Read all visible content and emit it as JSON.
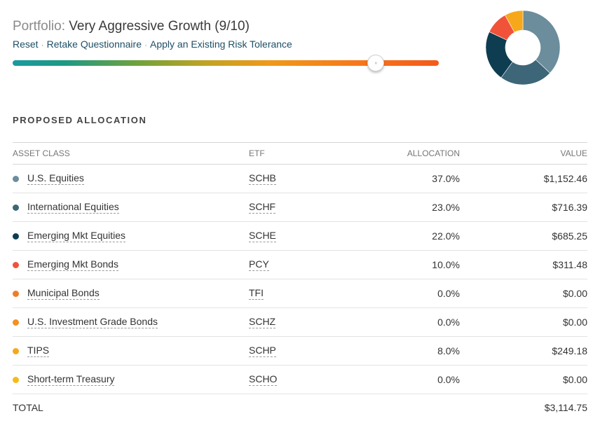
{
  "header": {
    "title_prefix": "Portfolio:",
    "title": "Very Aggressive Growth (9/10)",
    "links": [
      "Reset",
      "Retake Questionnaire",
      "Apply an Existing Risk Tolerance"
    ],
    "separator": "·"
  },
  "risk_slider": {
    "value": 9,
    "max": 10,
    "thumb_icon": "‹›"
  },
  "section_title": "PROPOSED ALLOCATION",
  "table": {
    "headers": [
      "ASSET CLASS",
      "ETF",
      "ALLOCATION",
      "VALUE"
    ],
    "rows": [
      {
        "asset": "U.S. Equities",
        "etf": "SCHB",
        "allocation": "37.0%",
        "value": "$1,152.46",
        "color": "#6b8d9c"
      },
      {
        "asset": "International Equities",
        "etf": "SCHF",
        "allocation": "23.0%",
        "value": "$716.39",
        "color": "#3d6678"
      },
      {
        "asset": "Emerging Mkt Equities",
        "etf": "SCHE",
        "allocation": "22.0%",
        "value": "$685.25",
        "color": "#0e3d52"
      },
      {
        "asset": "Emerging Mkt Bonds",
        "etf": "PCY",
        "allocation": "10.0%",
        "value": "$311.48",
        "color": "#f0533a"
      },
      {
        "asset": "Municipal Bonds",
        "etf": "TFI",
        "allocation": "0.0%",
        "value": "$0.00",
        "color": "#f07c2a"
      },
      {
        "asset": "U.S. Investment Grade Bonds",
        "etf": "SCHZ",
        "allocation": "0.0%",
        "value": "$0.00",
        "color": "#f39020"
      },
      {
        "asset": "TIPS",
        "etf": "SCHP",
        "allocation": "8.0%",
        "value": "$249.18",
        "color": "#f6a81a"
      },
      {
        "asset": "Short-term Treasury",
        "etf": "SCHO",
        "allocation": "0.0%",
        "value": "$0.00",
        "color": "#f5bb19"
      }
    ],
    "total_label": "TOTAL",
    "total_value": "$3,114.75"
  },
  "chart_data": {
    "type": "pie",
    "donut": true,
    "categories": [
      "U.S. Equities",
      "International Equities",
      "Emerging Mkt Equities",
      "Emerging Mkt Bonds",
      "TIPS"
    ],
    "values": [
      37.0,
      23.0,
      22.0,
      10.0,
      8.0
    ],
    "colors": [
      "#6b8d9c",
      "#3d6678",
      "#0e3d52",
      "#f0533a",
      "#f6a81a"
    ]
  }
}
